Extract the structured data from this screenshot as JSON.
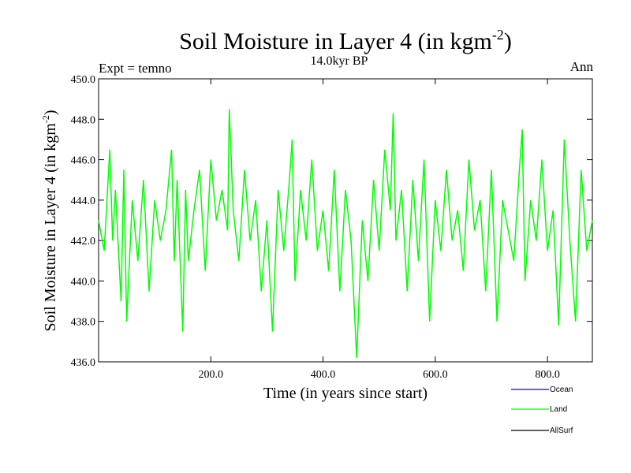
{
  "chart_data": {
    "type": "line",
    "title": "Soil Moisture in Layer 4 (in kgm",
    "title_sup": "-2",
    "title_close": ")",
    "subtitle": "14.0kyr BP",
    "left_note": "Expt = temno",
    "right_note": "Ann",
    "xlabel": "Time (in years since start)",
    "ylabel": "Soil Moisture in Layer 4 (in kgm",
    "ylabel_sup": "-2",
    "ylabel_close": ")",
    "xlim": [
      0,
      880
    ],
    "ylim": [
      436.0,
      450.0
    ],
    "xticks": [
      200.0,
      400.0,
      600.0,
      800.0
    ],
    "xtick_labels": [
      "200.0",
      "400.0",
      "600.0",
      "800.0"
    ],
    "yticks": [
      436.0,
      438.0,
      440.0,
      442.0,
      444.0,
      446.0,
      448.0,
      450.0
    ],
    "ytick_labels": [
      "436.0",
      "438.0",
      "440.0",
      "442.0",
      "444.0",
      "446.0",
      "448.0",
      "450.0"
    ],
    "legend": [
      {
        "name": "Ocean",
        "color": "#0000ff"
      },
      {
        "name": "Land",
        "color": "#00ff00"
      },
      {
        "name": "AllSurf",
        "color": "#000000"
      }
    ],
    "series": [
      {
        "name": "Land",
        "color": "#00ff00",
        "x": [
          0,
          10,
          20,
          25,
          30,
          40,
          45,
          50,
          60,
          70,
          80,
          90,
          100,
          110,
          120,
          130,
          135,
          140,
          150,
          155,
          160,
          170,
          180,
          190,
          200,
          210,
          220,
          230,
          233,
          240,
          250,
          260,
          270,
          280,
          290,
          300,
          310,
          320,
          330,
          340,
          345,
          350,
          360,
          370,
          380,
          390,
          400,
          410,
          420,
          430,
          440,
          450,
          460,
          470,
          480,
          490,
          500,
          510,
          520,
          525,
          530,
          540,
          550,
          560,
          570,
          580,
          590,
          600,
          610,
          620,
          630,
          640,
          650,
          660,
          670,
          680,
          690,
          700,
          710,
          720,
          730,
          740,
          750,
          755,
          760,
          770,
          780,
          790,
          800,
          810,
          820,
          830,
          840,
          850,
          860,
          870,
          880
        ],
        "values": [
          443.0,
          441.5,
          446.5,
          442.0,
          444.5,
          439.0,
          445.5,
          438.0,
          444.0,
          441.0,
          445.0,
          439.5,
          444.0,
          442.0,
          443.5,
          446.5,
          441.0,
          445.0,
          437.5,
          444.5,
          441.0,
          443.5,
          445.5,
          440.5,
          446.0,
          443.0,
          444.5,
          442.5,
          448.5,
          443.5,
          441.0,
          445.5,
          442.0,
          444.0,
          439.5,
          443.0,
          437.5,
          444.5,
          441.5,
          445.0,
          447.0,
          440.0,
          444.5,
          442.0,
          446.0,
          441.5,
          443.5,
          440.5,
          445.5,
          439.5,
          444.5,
          442.0,
          436.2,
          443.0,
          440.0,
          445.0,
          441.5,
          446.5,
          443.5,
          448.3,
          442.0,
          444.5,
          439.5,
          445.0,
          441.0,
          446.0,
          438.0,
          444.0,
          441.5,
          445.5,
          442.0,
          443.5,
          440.5,
          446.0,
          442.5,
          444.0,
          439.5,
          445.5,
          438.0,
          444.0,
          442.5,
          441.0,
          445.5,
          447.5,
          440.0,
          444.0,
          442.0,
          446.0,
          441.5,
          443.5,
          437.8,
          447.0,
          442.0,
          438.0,
          445.5,
          441.5,
          443.0
        ]
      },
      {
        "name": "Ocean",
        "color": "#0000ff",
        "values": []
      },
      {
        "name": "AllSurf",
        "color": "#000000",
        "values": []
      }
    ]
  }
}
